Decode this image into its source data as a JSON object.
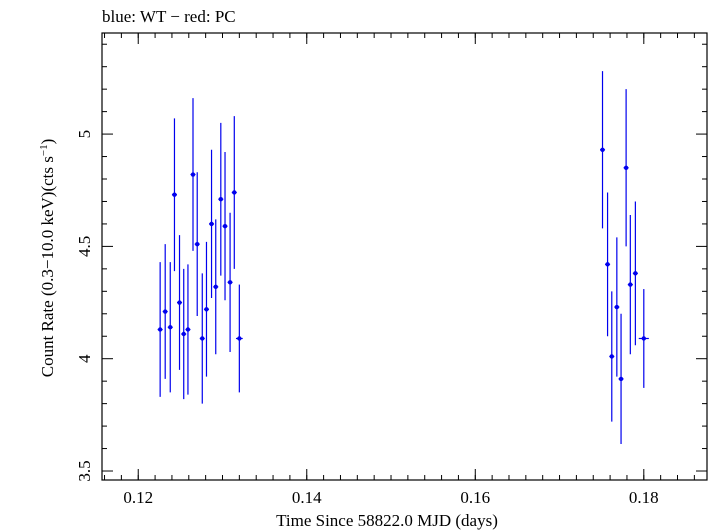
{
  "chart_data": {
    "type": "scatter",
    "title": "blue: WT − red: PC",
    "xlabel": "Time Since 58822.0 MJD (days)",
    "ylabel_main": "Count Rate (0.3−10.0 keV)(cts s",
    "ylabel_sup": "−1",
    "ylabel_close": ")",
    "xlim": [
      0.1157,
      0.1875
    ],
    "ylim": [
      3.46,
      5.45
    ],
    "x_ticks": [
      0.12,
      0.14,
      0.16,
      0.18
    ],
    "x_tick_labels": [
      "0.12",
      "0.14",
      "0.16",
      "0.18"
    ],
    "y_ticks": [
      3.5,
      4,
      4.5,
      5
    ],
    "y_tick_labels": [
      "3.5",
      "4",
      "4.5",
      "5"
    ],
    "grid": false,
    "colors": {
      "series": "#0000ee",
      "axes": "#000000"
    },
    "series": [
      {
        "points": [
          {
            "x": 0.1226,
            "y": 4.13,
            "xerr": 0.0003,
            "yerr": 0.3
          },
          {
            "x": 0.1232,
            "y": 4.21,
            "xerr": 0.0003,
            "yerr": 0.3
          },
          {
            "x": 0.1238,
            "y": 4.14,
            "xerr": 0.0003,
            "yerr": 0.29
          },
          {
            "x": 0.1243,
            "y": 4.73,
            "xerr": 0.0003,
            "yerr": 0.34
          },
          {
            "x": 0.1249,
            "y": 4.25,
            "xerr": 0.0003,
            "yerr": 0.3
          },
          {
            "x": 0.1254,
            "y": 4.11,
            "xerr": 0.0003,
            "yerr": 0.29
          },
          {
            "x": 0.1259,
            "y": 4.13,
            "xerr": 0.0003,
            "yerr": 0.29
          },
          {
            "x": 0.1265,
            "y": 4.82,
            "xerr": 0.0003,
            "yerr": 0.34
          },
          {
            "x": 0.127,
            "y": 4.51,
            "xerr": 0.0003,
            "yerr": 0.32
          },
          {
            "x": 0.1276,
            "y": 4.09,
            "xerr": 0.0003,
            "yerr": 0.29
          },
          {
            "x": 0.1281,
            "y": 4.22,
            "xerr": 0.0003,
            "yerr": 0.3
          },
          {
            "x": 0.1287,
            "y": 4.6,
            "xerr": 0.0003,
            "yerr": 0.33
          },
          {
            "x": 0.1292,
            "y": 4.32,
            "xerr": 0.0003,
            "yerr": 0.3
          },
          {
            "x": 0.1298,
            "y": 4.71,
            "xerr": 0.0003,
            "yerr": 0.34
          },
          {
            "x": 0.1303,
            "y": 4.59,
            "xerr": 0.0003,
            "yerr": 0.33
          },
          {
            "x": 0.1309,
            "y": 4.34,
            "xerr": 0.0003,
            "yerr": 0.31
          },
          {
            "x": 0.1314,
            "y": 4.74,
            "xerr": 0.0003,
            "yerr": 0.34
          },
          {
            "x": 0.132,
            "y": 4.09,
            "xerr": 0.0004,
            "yerr": 0.24
          },
          {
            "x": 0.1751,
            "y": 4.93,
            "xerr": 0.0003,
            "yerr": 0.35
          },
          {
            "x": 0.1757,
            "y": 4.42,
            "xerr": 0.0003,
            "yerr": 0.32
          },
          {
            "x": 0.1762,
            "y": 4.01,
            "xerr": 0.0003,
            "yerr": 0.29
          },
          {
            "x": 0.1768,
            "y": 4.23,
            "xerr": 0.0003,
            "yerr": 0.31
          },
          {
            "x": 0.1773,
            "y": 3.91,
            "xerr": 0.0003,
            "yerr": 0.29
          },
          {
            "x": 0.1779,
            "y": 4.85,
            "xerr": 0.0003,
            "yerr": 0.35
          },
          {
            "x": 0.1784,
            "y": 4.33,
            "xerr": 0.0003,
            "yerr": 0.31
          },
          {
            "x": 0.179,
            "y": 4.38,
            "xerr": 0.0003,
            "yerr": 0.32
          },
          {
            "x": 0.18,
            "y": 4.09,
            "xerr": 0.0006,
            "yerr": 0.22
          }
        ]
      }
    ]
  }
}
